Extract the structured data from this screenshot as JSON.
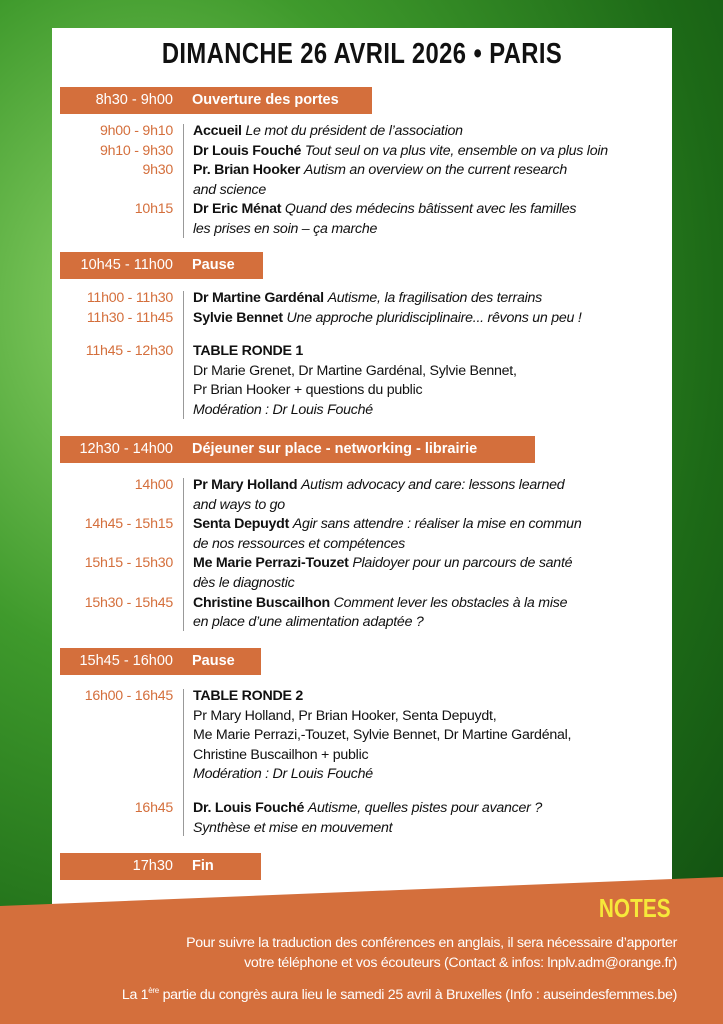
{
  "title": "DIMANCHE 26 AVRIL 2026 • PARIS",
  "colors": {
    "accent": "#d46f3c",
    "notes_title": "#f6e83a",
    "background": "#2f8a24"
  },
  "bars": [
    {
      "time": "8h30 - 9h00",
      "label": "Ouverture des portes"
    },
    {
      "time": "10h45 - 11h00",
      "label": "Pause"
    },
    {
      "time": "12h30 - 14h00",
      "label": "Déjeuner sur place - networking - librairie"
    },
    {
      "time": "15h45 - 16h00",
      "label": "Pause"
    },
    {
      "time": "17h30",
      "label": "Fin"
    }
  ],
  "sessions": {
    "s1": [
      {
        "time": "9h00 - 9h10",
        "speaker": "Accueil",
        "topic": "Le mot du président de l’association"
      },
      {
        "time": "9h10 - 9h30",
        "speaker": "Dr Louis Fouché",
        "topic": "Tout seul on va plus vite, ensemble on va plus loin"
      },
      {
        "time": "9h30",
        "speaker": "Pr. Brian Hooker",
        "topic": "Autism an overview on the current research",
        "topic2": "and science"
      },
      {
        "time": "10h15",
        "speaker": "Dr Eric Ménat",
        "topic": "Quand des médecins bâtissent avec les familles",
        "topic2": "les prises en soin – ça marche"
      }
    ],
    "s2": [
      {
        "time": "11h00 - 11h30",
        "speaker": "Dr Martine Gardénal",
        "topic": "Autisme, la fragilisation des terrains"
      },
      {
        "time": "11h30 - 11h45",
        "speaker": "Sylvie Bennet",
        "topic": "Une approche pluridisciplinaire... rêvons un peu !"
      },
      {
        "time": "11h45 - 12h30",
        "speaker": "TABLE RONDE 1",
        "lines": [
          "Dr Marie Grenet, Dr Martine Gardénal, Sylvie Bennet,",
          "Pr Brian Hooker + questions du public"
        ],
        "moderation": "Modération : Dr Louis Fouché"
      }
    ],
    "s3": [
      {
        "time": "14h00",
        "speaker": "Pr Mary Holland",
        "topic": "Autism advocacy and care: lessons learned",
        "topic2": "and ways to go"
      },
      {
        "time": "14h45 - 15h15",
        "speaker": "Senta Depuydt",
        "topic": "Agir sans attendre : réaliser la mise en commun",
        "topic2": "de nos ressources et compétences"
      },
      {
        "time": "15h15 - 15h30",
        "speaker": "Me Marie Perrazi-Touzet",
        "topic": "Plaidoyer pour un parcours de santé",
        "topic2": "dès le diagnostic"
      },
      {
        "time": "15h30 - 15h45",
        "speaker": "Christine Buscailhon",
        "topic": "Comment lever les obstacles à la mise",
        "topic2": "en place d’une alimentation adaptée ?"
      }
    ],
    "s4": [
      {
        "time": "16h00 - 16h45",
        "speaker": "TABLE RONDE 2",
        "lines": [
          "Pr Mary Holland, Pr Brian Hooker, Senta Depuydt,",
          "Me Marie Perrazi,-Touzet, Sylvie Bennet, Dr Martine Gardénal,",
          "Christine Buscailhon + public"
        ],
        "moderation": "Modération : Dr Louis Fouché"
      },
      {
        "time": "16h45",
        "speaker": "Dr. Louis Fouché",
        "topic": "Autisme, quelles pistes pour avancer ?",
        "topic2": "Synthèse et mise en mouvement"
      }
    ]
  },
  "notes": {
    "title": "NOTES",
    "line1": "Pour suivre la traduction des conférences en anglais, il sera nécessaire d’apporter",
    "line2": "votre téléphone et vos écouteurs (Contact & infos: lnplv.adm@orange.fr)",
    "line3_a": "La 1",
    "line3_sup": "ère",
    "line3_b": " partie du congrès aura lieu le samedi 25 avril à Bruxelles (Info : auseindesfemmes.be)"
  }
}
